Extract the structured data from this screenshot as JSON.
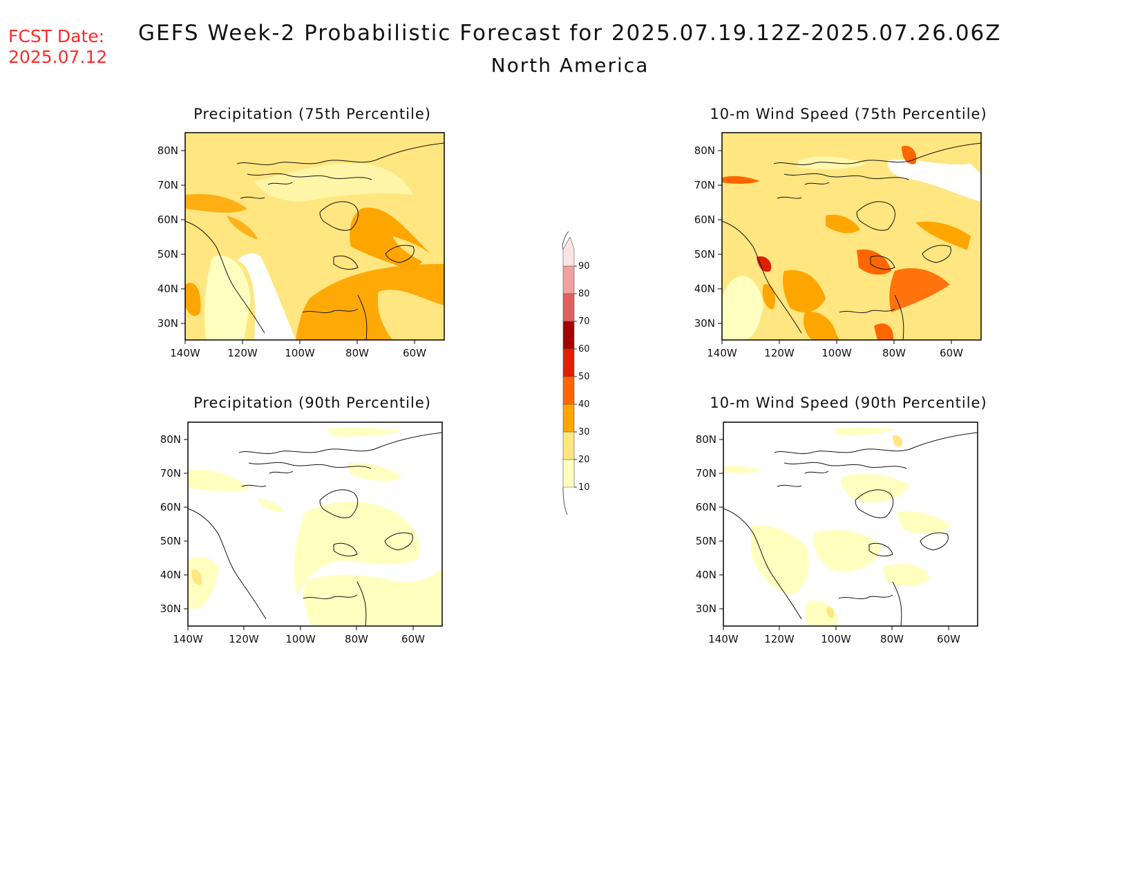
{
  "header": {
    "fcst_label": "FCST Date:",
    "fcst_date": "2025.07.12",
    "title": "GEFS Week-2 Probabilistic Forecast for 2025.07.19.12Z-2025.07.26.06Z",
    "subtitle": "North America"
  },
  "colorbar": {
    "levels": [
      "10",
      "20",
      "30",
      "40",
      "50",
      "60",
      "70",
      "80",
      "90"
    ],
    "colors": [
      "#ffffc0",
      "#ffe680",
      "#ffa500",
      "#ff6600",
      "#e02000",
      "#a50000",
      "#e06060",
      "#f2a0a0",
      "#ffe4e4"
    ]
  },
  "axes": {
    "lon_labels": [
      "140W",
      "120W",
      "100W",
      "80W",
      "60W"
    ],
    "lat_labels": [
      "80N",
      "70N",
      "60N",
      "50N",
      "40N",
      "30N"
    ]
  },
  "panels": [
    {
      "id": "precip-75",
      "title": "Precipitation (75th Percentile)"
    },
    {
      "id": "wind-75",
      "title": "10-m Wind Speed (75th Percentile)"
    },
    {
      "id": "precip-90",
      "title": "Precipitation (90th Percentile)"
    },
    {
      "id": "wind-90",
      "title": "10-m Wind Speed (90th Percentile)"
    }
  ]
}
